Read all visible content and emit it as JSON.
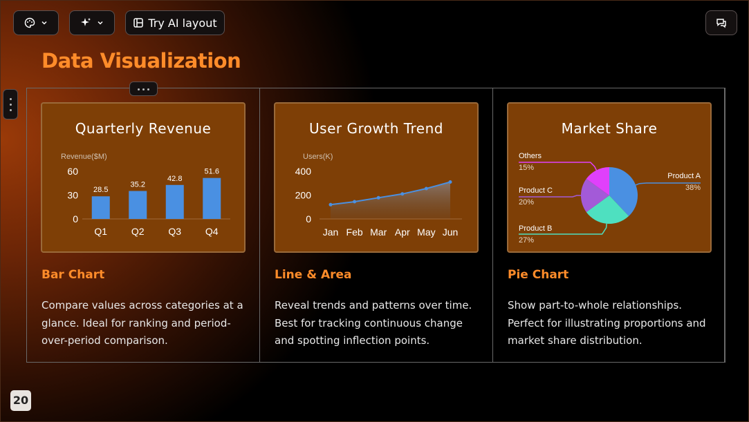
{
  "toolbar": {
    "theme_icon": "palette-icon",
    "ai_icon": "sparkle-icon",
    "layout_label": "Try AI layout",
    "layout_icon": "layout-icon",
    "comment_icon": "comment-icon"
  },
  "slide": {
    "title": "Data Visualization",
    "page_number": "20"
  },
  "columns": [
    {
      "card_title": "Quarterly Revenue",
      "subtitle": "Bar Chart",
      "description": "Compare values across categories at a glance. Ideal for ranking and period-over-period comparison."
    },
    {
      "card_title": "User Growth Trend",
      "subtitle": "Line & Area",
      "description": "Reveal trends and patterns over time. Best for tracking continuous change and spotting inflection points."
    },
    {
      "card_title": "Market Share",
      "subtitle": "Pie Chart",
      "description": "Show part-to-whole relationships. Perfect for illustrating proportions and market share distribution."
    }
  ],
  "chart_data": [
    {
      "type": "bar",
      "title": "Quarterly Revenue",
      "ylabel": "Revenue($M)",
      "categories": [
        "Q1",
        "Q2",
        "Q3",
        "Q4"
      ],
      "values": [
        28.5,
        35.2,
        42.8,
        51.6
      ],
      "data_labels": [
        "28.5",
        "35.2",
        "42.8",
        "51.6"
      ],
      "yticks": [
        "0",
        "30",
        "60"
      ],
      "ylim": [
        0,
        60
      ],
      "color": "#4a90e2"
    },
    {
      "type": "area",
      "title": "User Growth Trend",
      "ylabel": "Users(K)",
      "categories": [
        "Jan",
        "Feb",
        "Mar",
        "Apr",
        "May",
        "Jun"
      ],
      "values": [
        120,
        145,
        178,
        210,
        255,
        310
      ],
      "yticks": [
        "0",
        "200",
        "400"
      ],
      "ylim": [
        0,
        400
      ],
      "color": "#4a90e2"
    },
    {
      "type": "pie",
      "title": "Market Share",
      "slices": [
        {
          "name": "Product A",
          "label": "38%",
          "value": 38,
          "color": "#4a90e2"
        },
        {
          "name": "Product B",
          "label": "27%",
          "value": 27,
          "color": "#4ee0c0"
        },
        {
          "name": "Product C",
          "label": "20%",
          "value": 20,
          "color": "#a35ad8"
        },
        {
          "name": "Others",
          "label": "15%",
          "value": 15,
          "color": "#e040fb"
        }
      ]
    }
  ]
}
